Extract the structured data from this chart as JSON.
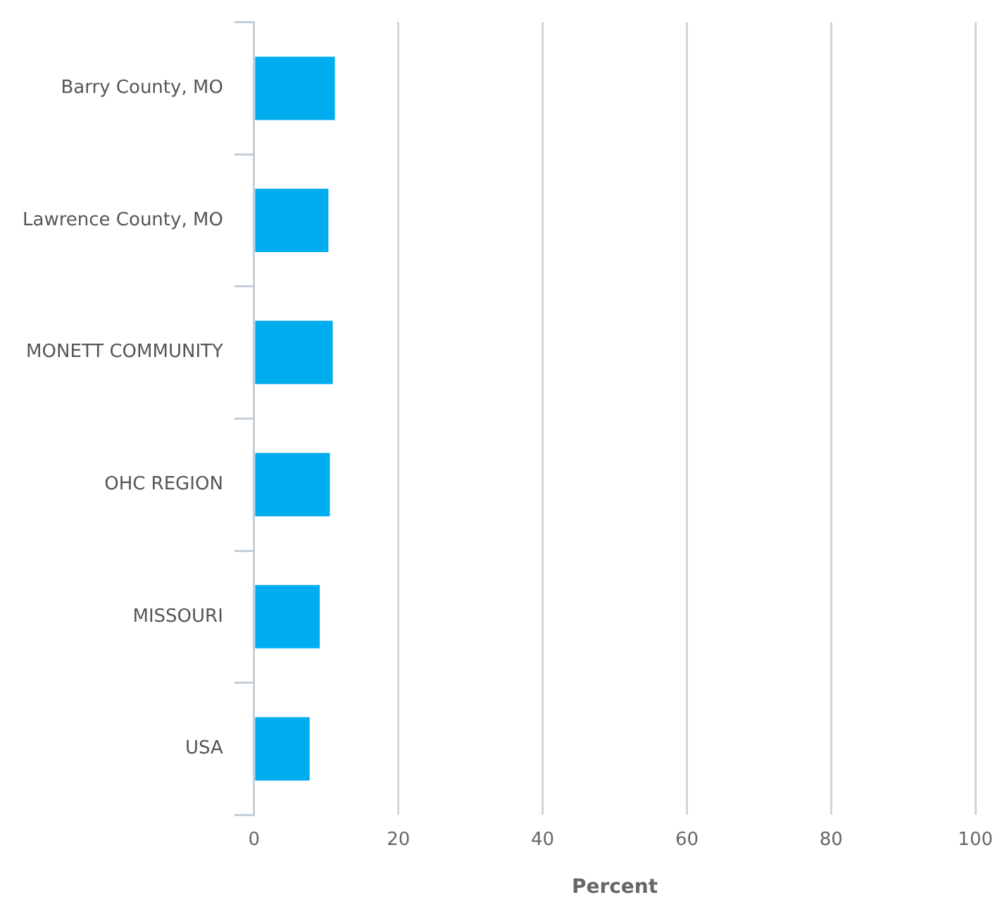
{
  "chart_data": {
    "type": "bar",
    "orientation": "horizontal",
    "xlabel": "Percent",
    "categories": [
      "Barry County, MO",
      "Lawrence County, MO",
      "MONETT COMMUNITY",
      "OHC REGION",
      "MISSOURI",
      "USA"
    ],
    "values": [
      11.2,
      10.3,
      10.9,
      10.5,
      9.1,
      7.7
    ],
    "color": "#00aeef",
    "xlim": [
      0,
      100
    ],
    "xticks": [
      0,
      20,
      40,
      60,
      80,
      100
    ],
    "grid": "x"
  }
}
